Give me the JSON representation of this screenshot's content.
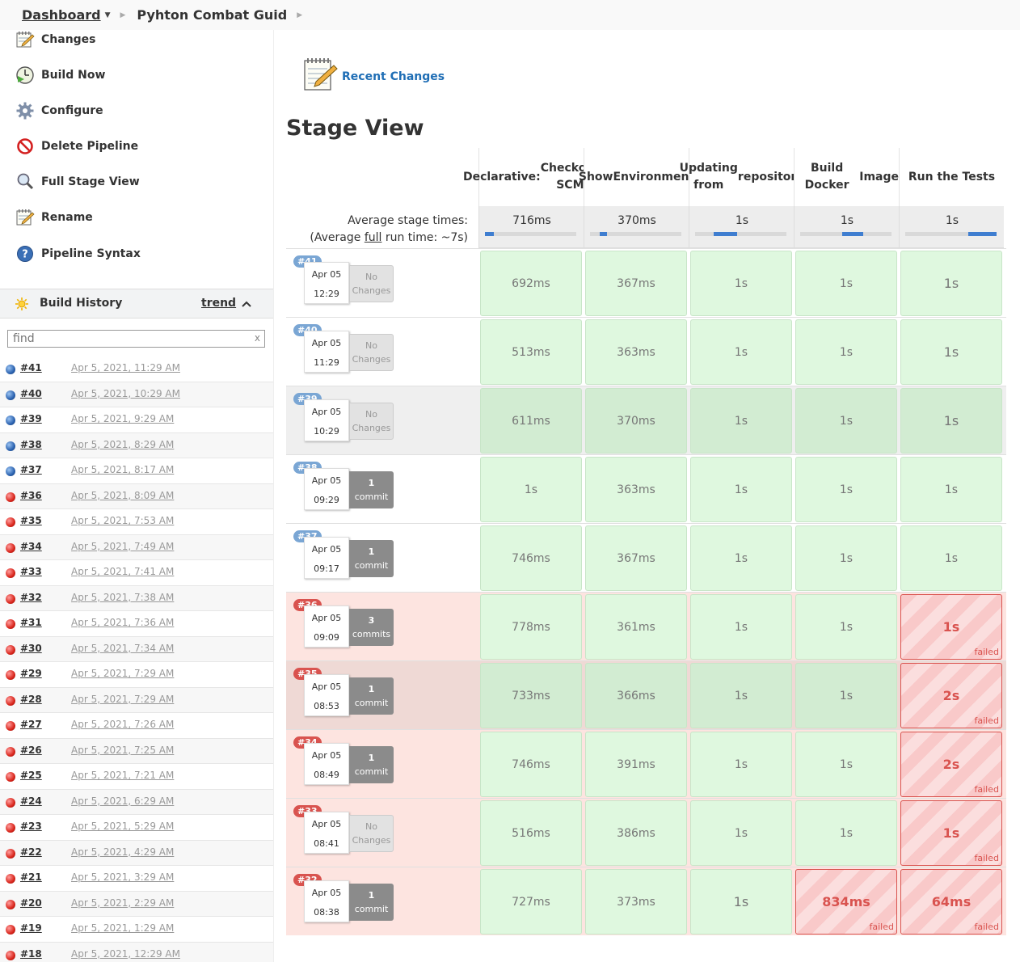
{
  "breadcrumb": {
    "dashboard": "Dashboard",
    "job": "Pyhton Combat Guid"
  },
  "tasks": [
    {
      "label": "Changes",
      "icon": "notepad-icon"
    },
    {
      "label": "Build Now",
      "icon": "clock-play-icon"
    },
    {
      "label": "Configure",
      "icon": "gear-icon"
    },
    {
      "label": "Delete Pipeline",
      "icon": "no-entry-icon"
    },
    {
      "label": "Full Stage View",
      "icon": "magnifier-icon"
    },
    {
      "label": "Rename",
      "icon": "notepad-icon"
    },
    {
      "label": "Pipeline Syntax",
      "icon": "help-icon"
    }
  ],
  "build_history": {
    "title": "Build History",
    "trend": "trend",
    "find_placeholder": "find",
    "clear": "x",
    "builds": [
      {
        "num": "#41",
        "date": "Apr 5, 2021, 11:29 AM",
        "status": "blue"
      },
      {
        "num": "#40",
        "date": "Apr 5, 2021, 10:29 AM",
        "status": "blue"
      },
      {
        "num": "#39",
        "date": "Apr 5, 2021, 9:29 AM",
        "status": "blue"
      },
      {
        "num": "#38",
        "date": "Apr 5, 2021, 8:29 AM",
        "status": "blue"
      },
      {
        "num": "#37",
        "date": "Apr 5, 2021, 8:17 AM",
        "status": "blue"
      },
      {
        "num": "#36",
        "date": "Apr 5, 2021, 8:09 AM",
        "status": "red"
      },
      {
        "num": "#35",
        "date": "Apr 5, 2021, 7:53 AM",
        "status": "red"
      },
      {
        "num": "#34",
        "date": "Apr 5, 2021, 7:49 AM",
        "status": "red"
      },
      {
        "num": "#33",
        "date": "Apr 5, 2021, 7:41 AM",
        "status": "red"
      },
      {
        "num": "#32",
        "date": "Apr 5, 2021, 7:38 AM",
        "status": "red"
      },
      {
        "num": "#31",
        "date": "Apr 5, 2021, 7:36 AM",
        "status": "red"
      },
      {
        "num": "#30",
        "date": "Apr 5, 2021, 7:34 AM",
        "status": "red"
      },
      {
        "num": "#29",
        "date": "Apr 5, 2021, 7:29 AM",
        "status": "red"
      },
      {
        "num": "#28",
        "date": "Apr 5, 2021, 7:29 AM",
        "status": "red"
      },
      {
        "num": "#27",
        "date": "Apr 5, 2021, 7:26 AM",
        "status": "red"
      },
      {
        "num": "#26",
        "date": "Apr 5, 2021, 7:25 AM",
        "status": "red"
      },
      {
        "num": "#25",
        "date": "Apr 5, 2021, 7:21 AM",
        "status": "red"
      },
      {
        "num": "#24",
        "date": "Apr 5, 2021, 6:29 AM",
        "status": "red"
      },
      {
        "num": "#23",
        "date": "Apr 5, 2021, 5:29 AM",
        "status": "red"
      },
      {
        "num": "#22",
        "date": "Apr 5, 2021, 4:29 AM",
        "status": "red"
      },
      {
        "num": "#21",
        "date": "Apr 5, 2021, 3:29 AM",
        "status": "red"
      },
      {
        "num": "#20",
        "date": "Apr 5, 2021, 2:29 AM",
        "status": "red"
      },
      {
        "num": "#19",
        "date": "Apr 5, 2021, 1:29 AM",
        "status": "red"
      },
      {
        "num": "#18",
        "date": "Apr 5, 2021, 12:29 AM",
        "status": "red"
      }
    ]
  },
  "recent_changes": "Recent Changes",
  "stage_view": {
    "title": "Stage View",
    "avg_label_1": "Average stage times:",
    "avg_label_2_prefix": "(Average ",
    "avg_label_2_link": "full",
    "avg_label_2_suffix": " run time: ~7s)",
    "stages": [
      {
        "name": "Declarative: Checkout SCM",
        "lines": [
          "Declarative:",
          "Checkout SCM"
        ],
        "avg": "716ms",
        "avg_bar": {
          "start": 0.0,
          "end": 0.1
        }
      },
      {
        "name": "Show Environment",
        "lines": [
          "Show",
          "Environment"
        ],
        "avg": "370ms",
        "avg_bar": {
          "start": 0.11,
          "end": 0.19
        }
      },
      {
        "name": "Updating from repository",
        "lines": [
          "Updating from",
          "repository"
        ],
        "avg": "1s",
        "avg_bar": {
          "start": 0.2,
          "end": 0.46
        }
      },
      {
        "name": "Build Docker Image",
        "lines": [
          "Build Docker",
          "Image"
        ],
        "avg": "1s",
        "avg_bar": {
          "start": 0.46,
          "end": 0.69
        }
      },
      {
        "name": "Run the Tests",
        "lines": [
          "Run the Tests"
        ],
        "avg": "1s",
        "avg_bar": {
          "start": 0.69,
          "end": 1.0
        }
      }
    ],
    "failed_label": "failed",
    "runs": [
      {
        "num": "#41",
        "date": "Apr 05",
        "time": "12:29",
        "changes": [
          "No",
          "Changes"
        ],
        "has_changes": false,
        "status": "ok",
        "cells": [
          {
            "t": "692ms",
            "s": "s"
          },
          {
            "t": "367ms",
            "s": "s"
          },
          {
            "t": "1s",
            "s": "s"
          },
          {
            "t": "1s",
            "s": "s"
          },
          {
            "t": "1s",
            "s": "s",
            "big": true
          }
        ]
      },
      {
        "num": "#40",
        "date": "Apr 05",
        "time": "11:29",
        "changes": [
          "No",
          "Changes"
        ],
        "has_changes": false,
        "status": "ok",
        "cells": [
          {
            "t": "513ms",
            "s": "s"
          },
          {
            "t": "363ms",
            "s": "s"
          },
          {
            "t": "1s",
            "s": "s"
          },
          {
            "t": "1s",
            "s": "s"
          },
          {
            "t": "1s",
            "s": "s",
            "big": true
          }
        ]
      },
      {
        "num": "#39",
        "date": "Apr 05",
        "time": "10:29",
        "changes": [
          "No",
          "Changes"
        ],
        "has_changes": false,
        "status": "ok",
        "alt": true,
        "cells": [
          {
            "t": "611ms",
            "s": "s"
          },
          {
            "t": "370ms",
            "s": "s"
          },
          {
            "t": "1s",
            "s": "s"
          },
          {
            "t": "1s",
            "s": "s"
          },
          {
            "t": "1s",
            "s": "s",
            "big": true
          }
        ]
      },
      {
        "num": "#38",
        "date": "Apr 05",
        "time": "09:29",
        "changes": [
          "1",
          "commit"
        ],
        "has_changes": true,
        "status": "ok",
        "cells": [
          {
            "t": "1s",
            "s": "s"
          },
          {
            "t": "363ms",
            "s": "s"
          },
          {
            "t": "1s",
            "s": "s"
          },
          {
            "t": "1s",
            "s": "s"
          },
          {
            "t": "1s",
            "s": "s"
          }
        ]
      },
      {
        "num": "#37",
        "date": "Apr 05",
        "time": "09:17",
        "changes": [
          "1",
          "commit"
        ],
        "has_changes": true,
        "status": "ok",
        "cells": [
          {
            "t": "746ms",
            "s": "s"
          },
          {
            "t": "367ms",
            "s": "s"
          },
          {
            "t": "1s",
            "s": "s"
          },
          {
            "t": "1s",
            "s": "s"
          },
          {
            "t": "1s",
            "s": "s"
          }
        ]
      },
      {
        "num": "#36",
        "date": "Apr 05",
        "time": "09:09",
        "changes": [
          "3",
          "commits"
        ],
        "has_changes": true,
        "status": "bad",
        "cells": [
          {
            "t": "778ms",
            "s": "s"
          },
          {
            "t": "361ms",
            "s": "s"
          },
          {
            "t": "1s",
            "s": "s"
          },
          {
            "t": "1s",
            "s": "s"
          },
          {
            "t": "1s",
            "s": "f"
          }
        ]
      },
      {
        "num": "#35",
        "date": "Apr 05",
        "time": "08:53",
        "changes": [
          "1",
          "commit"
        ],
        "has_changes": true,
        "status": "bad",
        "alt": true,
        "cells": [
          {
            "t": "733ms",
            "s": "s"
          },
          {
            "t": "366ms",
            "s": "s"
          },
          {
            "t": "1s",
            "s": "s"
          },
          {
            "t": "1s",
            "s": "s"
          },
          {
            "t": "2s",
            "s": "f"
          }
        ]
      },
      {
        "num": "#34",
        "date": "Apr 05",
        "time": "08:49",
        "changes": [
          "1",
          "commit"
        ],
        "has_changes": true,
        "status": "bad",
        "cells": [
          {
            "t": "746ms",
            "s": "s"
          },
          {
            "t": "391ms",
            "s": "s"
          },
          {
            "t": "1s",
            "s": "s"
          },
          {
            "t": "1s",
            "s": "s"
          },
          {
            "t": "2s",
            "s": "f"
          }
        ]
      },
      {
        "num": "#33",
        "date": "Apr 05",
        "time": "08:41",
        "changes": [
          "No",
          "Changes"
        ],
        "has_changes": false,
        "status": "bad",
        "cells": [
          {
            "t": "516ms",
            "s": "s"
          },
          {
            "t": "386ms",
            "s": "s"
          },
          {
            "t": "1s",
            "s": "s"
          },
          {
            "t": "1s",
            "s": "s"
          },
          {
            "t": "1s",
            "s": "f"
          }
        ]
      },
      {
        "num": "#32",
        "date": "Apr 05",
        "time": "08:38",
        "changes": [
          "1",
          "commit"
        ],
        "has_changes": true,
        "status": "bad",
        "cells": [
          {
            "t": "727ms",
            "s": "s"
          },
          {
            "t": "373ms",
            "s": "s"
          },
          {
            "t": "1s",
            "s": "s",
            "big": true
          },
          {
            "t": "834ms",
            "s": "f"
          },
          {
            "t": "64ms",
            "s": "f"
          }
        ]
      }
    ]
  }
}
